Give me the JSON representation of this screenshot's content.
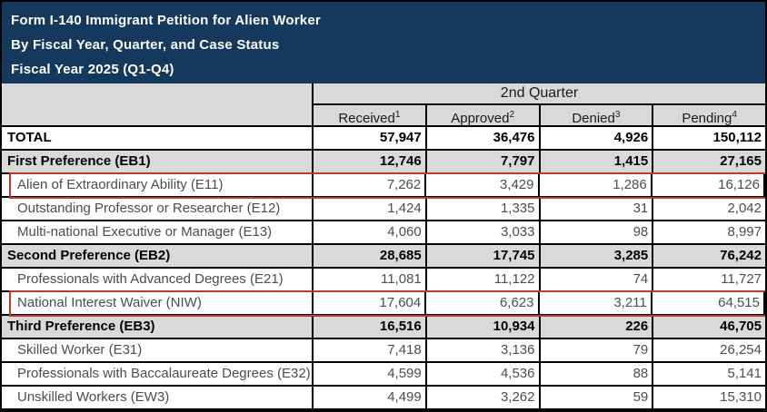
{
  "banner": {
    "line1": "Form I-140 Immigrant Petition for Alien Worker",
    "line2": "By Fiscal Year, Quarter, and Case Status",
    "line3": "Fiscal Year 2025 (Q1-Q4)"
  },
  "colors": {
    "banner_bg": "#14395D",
    "header_gray": "#D9D9D9",
    "highlight_red": "#C0392B",
    "border_black": "#000000",
    "detail_text": "#4D4D4D"
  },
  "table": {
    "quarter_header": "2nd Quarter",
    "columns": [
      {
        "label": "Received",
        "sup": "1"
      },
      {
        "label": "Approved",
        "sup": "2"
      },
      {
        "label": "Denied",
        "sup": "3"
      },
      {
        "label": "Pending",
        "sup": "4"
      }
    ],
    "rows": [
      {
        "label": "TOTAL",
        "type": "total",
        "highlighted": false,
        "values": [
          "57,947",
          "36,476",
          "4,926",
          "150,112"
        ]
      },
      {
        "label": "First Preference (EB1)",
        "type": "group",
        "highlighted": false,
        "values": [
          "12,746",
          "7,797",
          "1,415",
          "27,165"
        ]
      },
      {
        "label": "Alien of Extraordinary Ability (E11)",
        "type": "detail",
        "highlighted": true,
        "values": [
          "7,262",
          "3,429",
          "1,286",
          "16,126"
        ]
      },
      {
        "label": "Outstanding Professor or Researcher (E12)",
        "type": "detail",
        "highlighted": false,
        "values": [
          "1,424",
          "1,335",
          "31",
          "2,042"
        ]
      },
      {
        "label": "Multi-national Executive or Manager (E13)",
        "type": "detail",
        "highlighted": false,
        "values": [
          "4,060",
          "3,033",
          "98",
          "8,997"
        ]
      },
      {
        "label": "Second Preference (EB2)",
        "type": "group",
        "highlighted": false,
        "values": [
          "28,685",
          "17,745",
          "3,285",
          "76,242"
        ]
      },
      {
        "label": "Professionals with Advanced Degrees (E21)",
        "type": "detail",
        "highlighted": false,
        "values": [
          "11,081",
          "11,122",
          "74",
          "11,727"
        ]
      },
      {
        "label": "National Interest Waiver (NIW)",
        "type": "detail",
        "highlighted": true,
        "values": [
          "17,604",
          "6,623",
          "3,211",
          "64,515"
        ]
      },
      {
        "label": "Third Preference (EB3)",
        "type": "group",
        "highlighted": false,
        "values": [
          "16,516",
          "10,934",
          "226",
          "46,705"
        ]
      },
      {
        "label": "Skilled Worker (E31)",
        "type": "detail",
        "highlighted": false,
        "values": [
          "7,418",
          "3,136",
          "79",
          "26,254"
        ]
      },
      {
        "label": "Professionals with Baccalaureate Degrees (E32)",
        "type": "detail",
        "highlighted": false,
        "values": [
          "4,599",
          "4,536",
          "88",
          "5,141"
        ]
      },
      {
        "label": "Unskilled Workers (EW3)",
        "type": "detail",
        "highlighted": false,
        "values": [
          "4,499",
          "3,262",
          "59",
          "15,310"
        ]
      }
    ]
  }
}
